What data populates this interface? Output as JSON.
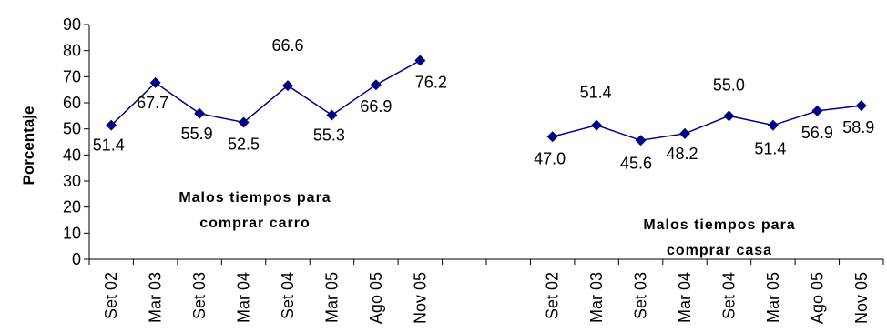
{
  "chart_data": {
    "type": "line",
    "ylabel": "Porcentaje",
    "ylim": [
      0,
      90
    ],
    "yticks": [
      0,
      10,
      20,
      30,
      40,
      50,
      60,
      70,
      80,
      90
    ],
    "grid": false,
    "line_color": "#000080",
    "series": [
      {
        "name": "Malos tiempos para comprar carro",
        "annotation": [
          "Malos tiempos para",
          "comprar carro"
        ],
        "categories": [
          "Set 02",
          "Mar 03",
          "Set 03",
          "Mar 04",
          "Set 04",
          "Mar 05",
          "Ago 05",
          "Nov 05"
        ],
        "values": [
          51.4,
          67.7,
          55.9,
          52.5,
          66.6,
          55.3,
          66.9,
          76.2
        ],
        "data_labels": [
          "51.4",
          "67.7",
          "55.9",
          "52.5",
          "66.6",
          "55.3",
          "66.9",
          "76.2"
        ]
      },
      {
        "name": "Malos tiempos para comprar casa",
        "annotation": [
          "Malos tiempos para",
          "comprar casa"
        ],
        "categories": [
          "Set 02",
          "Mar 03",
          "Set 03",
          "Mar 04",
          "Set 04",
          "Mar 05",
          "Ago 05",
          "Nov 05"
        ],
        "values": [
          47.0,
          51.4,
          45.6,
          48.2,
          55.0,
          51.4,
          56.9,
          58.9
        ],
        "data_labels": [
          "47.0",
          "51.4",
          "45.6",
          "48.2",
          "55.0",
          "51.4",
          "56.9",
          "58.9"
        ]
      }
    ]
  }
}
